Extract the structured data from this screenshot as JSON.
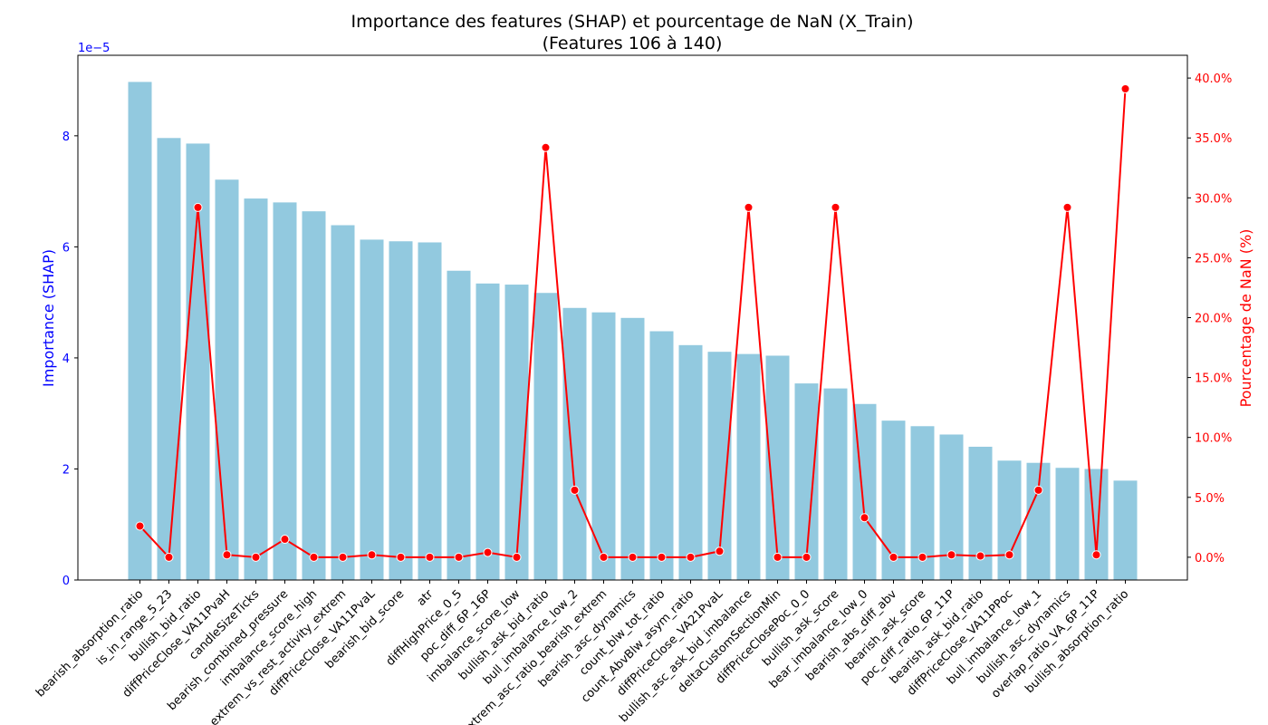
{
  "chart_data": {
    "type": "bar",
    "title": "Importance des features (SHAP) et pourcentage de NaN (X_Train)",
    "subtitle": "(Features 106 à 140)",
    "ylabel_left": "Importance (SHAP)",
    "ylabel_right": "Pourcentage de NaN (%)",
    "left_axis_offset_text": "1e−5",
    "left_ylim": [
      0,
      9.45
    ],
    "left_ticks": [
      0,
      2,
      4,
      6,
      8
    ],
    "left_tick_labels": [
      "0",
      "2",
      "4",
      "6",
      "8"
    ],
    "right_ylim": [
      -1.9,
      41.9
    ],
    "right_ticks": [
      0,
      5,
      10,
      15,
      20,
      25,
      30,
      35,
      40
    ],
    "right_tick_labels": [
      "0.0%",
      "5.0%",
      "10.0%",
      "15.0%",
      "20.0%",
      "25.0%",
      "30.0%",
      "35.0%",
      "40.0%"
    ],
    "colors": {
      "bars": "#92c9df",
      "line": "#ff0000",
      "left_axis": "#0000ff",
      "right_axis": "#ff0000"
    },
    "categories": [
      "bearish_absorption_ratio",
      "is_in_range_5_23",
      "bullish_bid_ratio",
      "diffPriceClose_VA11PvaH",
      "candleSizeTicks",
      "bearish_combined_pressure",
      "imbalance_score_high",
      "extrem_vs_rest_activity_extrem",
      "diffPriceClose_VA11PvaL",
      "bearish_bid_score",
      "atr",
      "diffHighPrice_0_5",
      "poc_diff_6P_16P",
      "imbalance_score_low",
      "bullish_ask_bid_ratio",
      "bull_imbalance_low_2",
      "extrem_asc_ratio_bearish_extrem",
      "bearish_asc_dynamics",
      "count_blw_tot_ratio",
      "count_AbvBlw_asym_ratio",
      "diffPriceClose_VA21PvaL",
      "bullish_asc_ask_bid_imbalance",
      "deltaCustomSectionMin",
      "diffPriceClosePoc_0_0",
      "bullish_ask_score",
      "bear_imbalance_low_0",
      "bearish_abs_diff_abv",
      "bearish_ask_score",
      "poc_diff_ratio_6P_11P",
      "bearish_ask_bid_ratio",
      "diffPriceClose_VA11PPoc",
      "bull_imbalance_low_1",
      "bullish_asc_dynamics",
      "overlap_ratio_VA_6P_11P",
      "bullish_absorption_ratio"
    ],
    "series": [
      {
        "name": "Importance (SHAP)",
        "axis": "left",
        "type": "bar",
        "values": [
          8.97,
          7.96,
          7.86,
          7.21,
          6.87,
          6.8,
          6.64,
          6.39,
          6.13,
          6.1,
          6.08,
          5.57,
          5.34,
          5.32,
          5.17,
          4.9,
          4.82,
          4.72,
          4.48,
          4.23,
          4.11,
          4.07,
          4.04,
          3.54,
          3.45,
          3.17,
          2.87,
          2.77,
          2.62,
          2.4,
          2.15,
          2.11,
          2.02,
          2.0,
          1.79
        ]
      },
      {
        "name": "Pourcentage de NaN (%)",
        "axis": "right",
        "type": "line",
        "values": [
          2.6,
          0.0,
          29.2,
          0.2,
          0.0,
          1.5,
          0.0,
          0.0,
          0.2,
          0.0,
          0.0,
          0.0,
          0.4,
          0.0,
          34.2,
          5.6,
          0.0,
          0.0,
          0.0,
          0.0,
          0.5,
          29.2,
          0.0,
          0.0,
          29.2,
          3.3,
          0.0,
          0.0,
          0.2,
          0.1,
          0.2,
          5.6,
          29.2,
          0.2,
          39.1
        ]
      }
    ]
  }
}
